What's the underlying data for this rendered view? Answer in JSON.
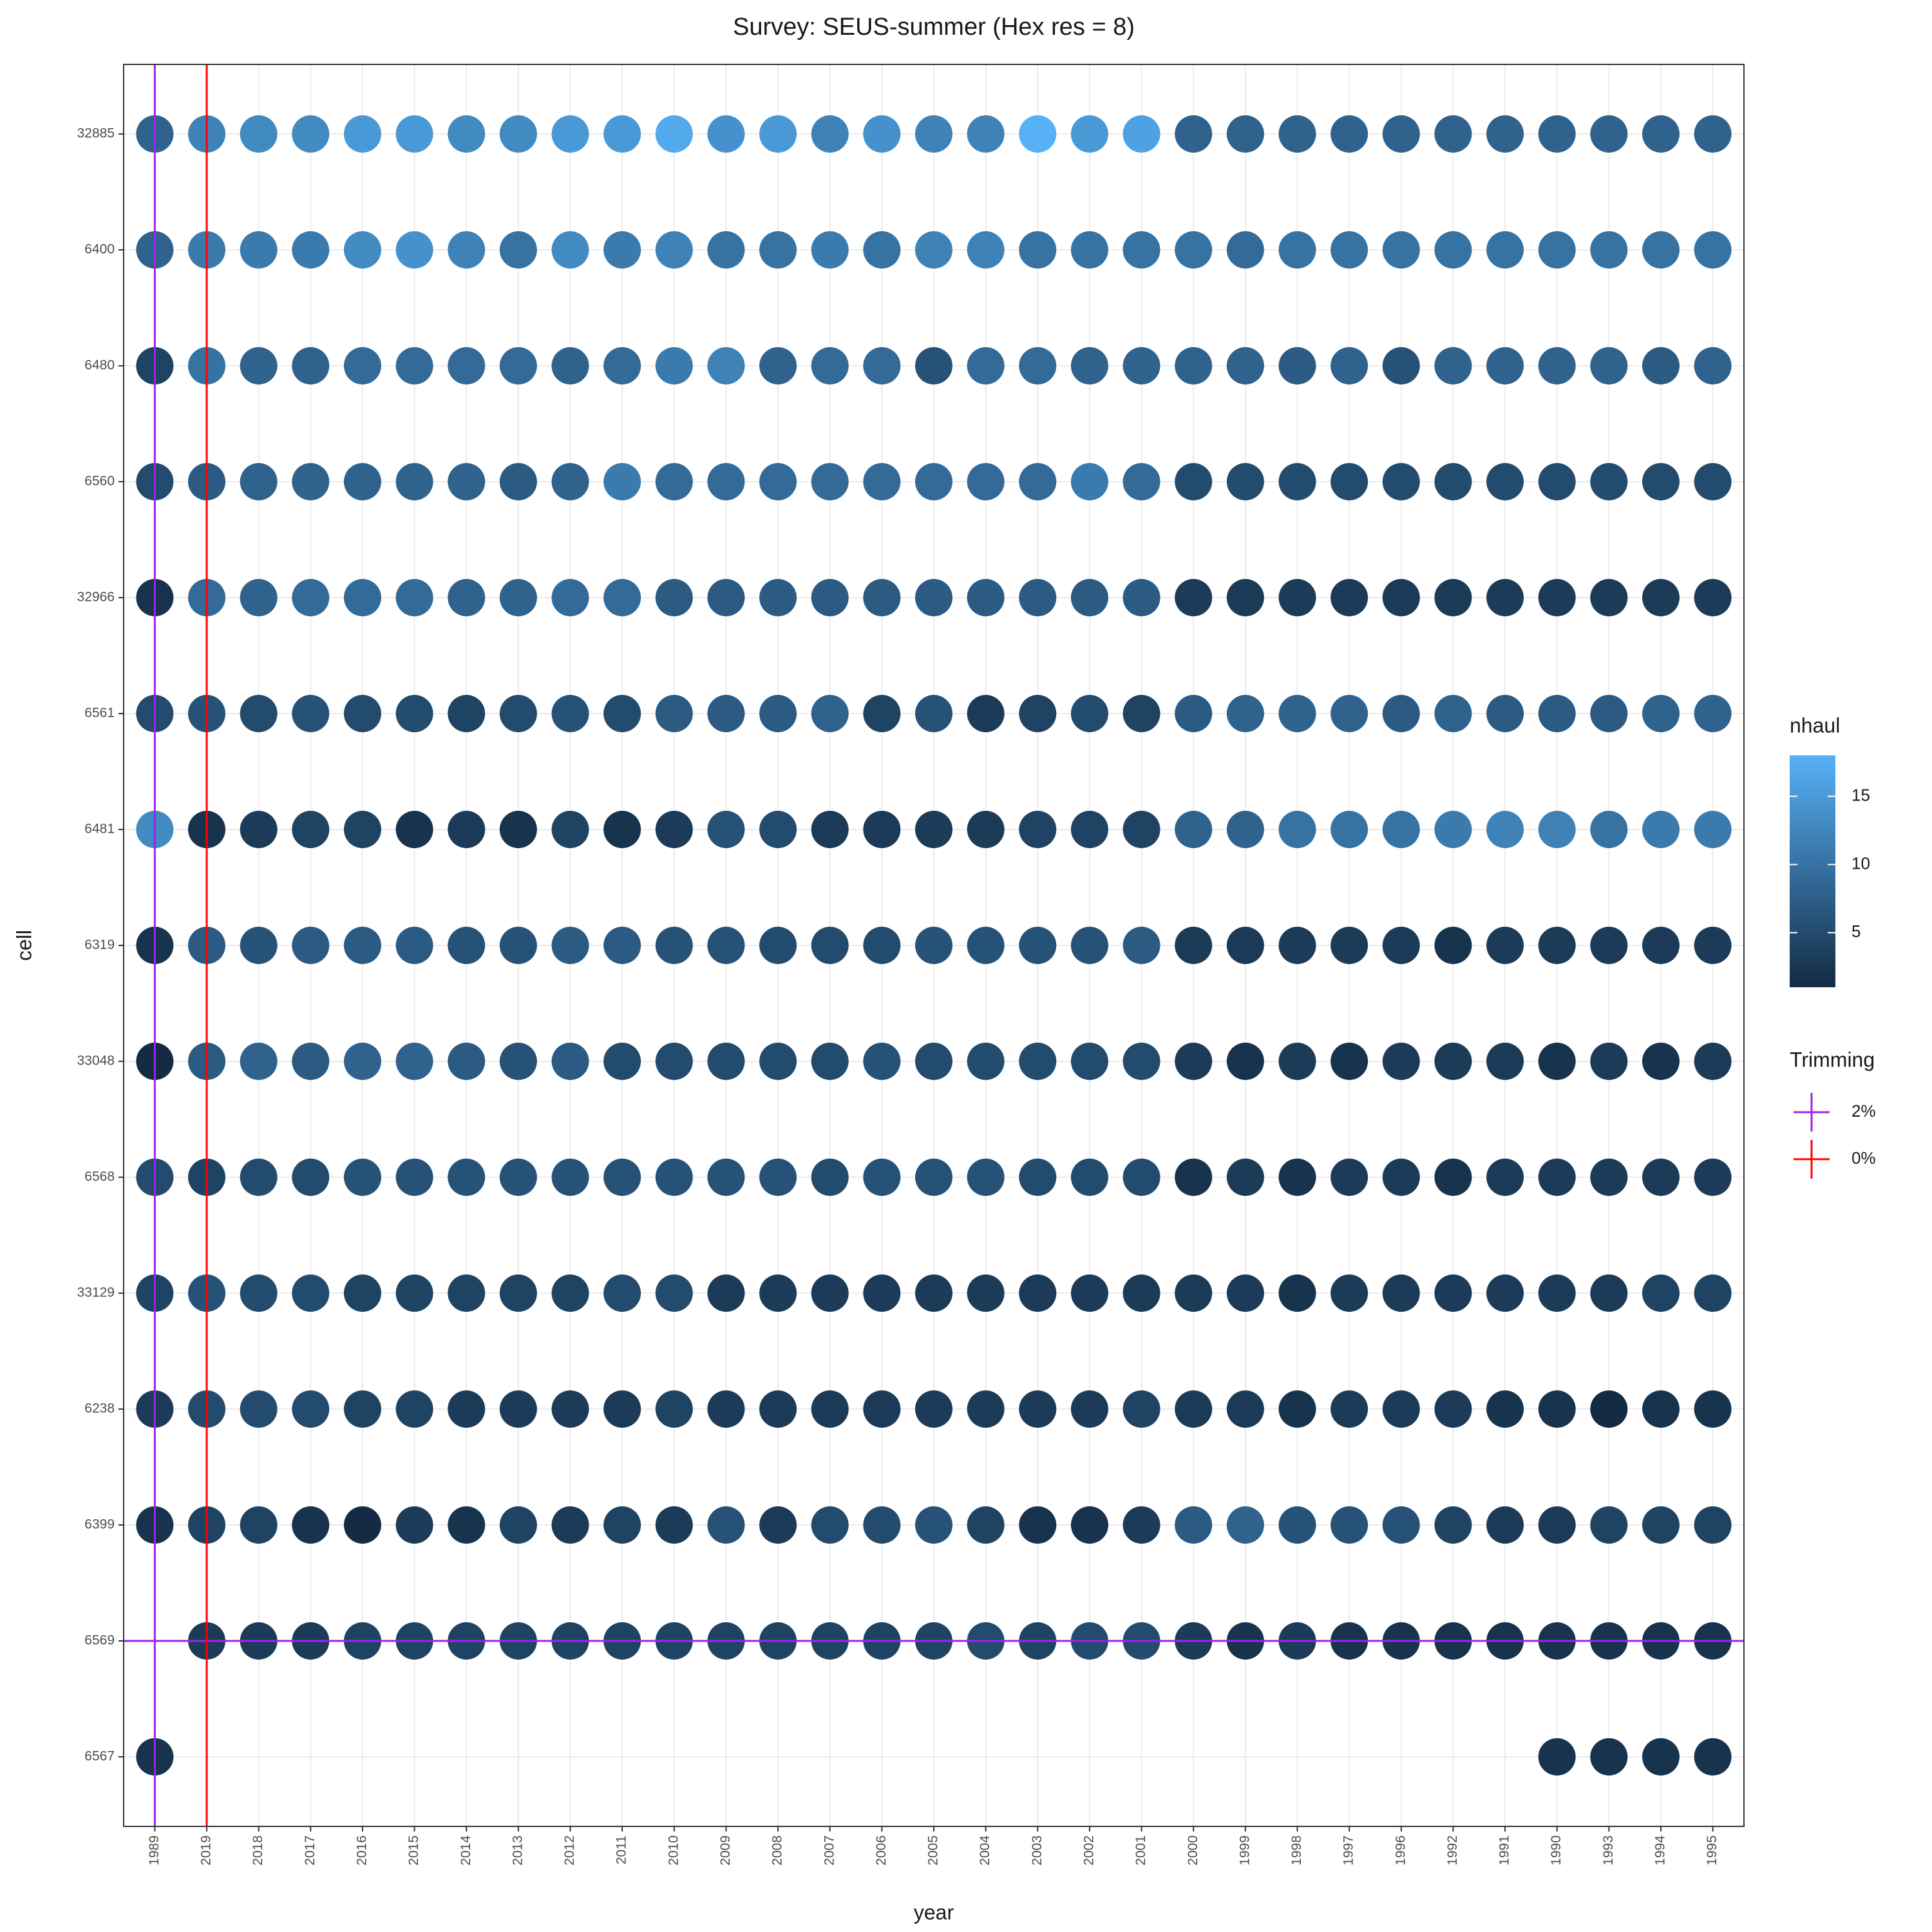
{
  "chart_data": {
    "type": "dotmatrix",
    "title": "Survey: SEUS-summer (Hex res = 8)",
    "x_label": "year",
    "y_label": "cell",
    "x": [
      "1989",
      "2019",
      "2018",
      "2017",
      "2016",
      "2015",
      "2014",
      "2013",
      "2012",
      "2011",
      "2010",
      "2009",
      "2008",
      "2007",
      "2006",
      "2005",
      "2004",
      "2003",
      "2002",
      "2001",
      "2000",
      "1999",
      "1998",
      "1997",
      "1996",
      "1992",
      "1991",
      "1990",
      "1993",
      "1994",
      "1995"
    ],
    "y": [
      "32885",
      "6400",
      "6480",
      "6560",
      "32966",
      "6561",
      "6481",
      "6319",
      "33048",
      "6568",
      "33129",
      "6238",
      "6399",
      "6569",
      "6567"
    ],
    "values": [
      [
        8,
        12,
        13,
        13,
        15,
        15,
        13,
        13,
        15,
        15,
        17,
        14,
        15,
        12,
        14,
        12,
        12,
        18,
        15,
        16,
        8,
        8,
        8,
        8,
        8,
        8,
        8,
        8,
        8,
        8,
        8
      ],
      [
        8,
        11,
        11,
        11,
        13,
        14,
        12,
        10,
        13,
        11,
        12,
        10,
        10,
        11,
        10,
        12,
        12,
        10,
        10,
        10,
        10,
        9,
        10,
        10,
        10,
        10,
        10,
        10,
        10,
        10,
        10
      ],
      [
        4,
        10,
        8,
        8,
        9,
        9,
        9,
        9,
        8,
        9,
        11,
        12,
        8,
        9,
        9,
        6,
        9,
        9,
        8,
        8,
        8,
        8,
        7,
        8,
        6,
        8,
        8,
        8,
        8,
        7,
        8
      ],
      [
        5,
        7,
        8,
        8,
        8,
        8,
        8,
        7,
        8,
        11,
        9,
        9,
        9,
        9,
        9,
        9,
        9,
        9,
        11,
        9,
        5,
        5,
        5,
        5,
        5,
        5,
        5,
        5,
        5,
        5,
        5
      ],
      [
        2,
        9,
        8,
        9,
        9,
        9,
        8,
        8,
        9,
        9,
        7,
        7,
        7,
        7,
        7,
        7,
        7,
        7,
        7,
        7,
        3,
        3,
        3,
        3,
        3,
        3,
        3,
        3,
        3,
        3,
        3
      ],
      [
        5,
        6,
        5,
        6,
        5,
        5,
        4,
        5,
        6,
        5,
        7,
        7,
        7,
        8,
        4,
        6,
        3,
        4,
        5,
        4,
        7,
        8,
        8,
        8,
        7,
        8,
        7,
        7,
        7,
        8,
        8
      ],
      [
        13,
        2,
        3,
        4,
        4,
        2,
        3,
        2,
        4,
        2,
        3,
        6,
        5,
        3,
        3,
        3,
        3,
        4,
        4,
        4,
        8,
        8,
        10,
        10,
        10,
        11,
        12,
        12,
        10,
        11,
        11
      ],
      [
        2,
        7,
        6,
        7,
        7,
        7,
        6,
        6,
        7,
        7,
        6,
        6,
        5,
        5,
        5,
        6,
        6,
        6,
        6,
        7,
        3,
        3,
        3,
        3,
        3,
        2,
        3,
        3,
        3,
        3,
        3
      ],
      [
        1,
        7,
        8,
        7,
        8,
        8,
        7,
        6,
        7,
        5,
        5,
        5,
        5,
        5,
        6,
        5,
        5,
        5,
        5,
        5,
        3,
        2,
        3,
        2,
        3,
        3,
        3,
        2,
        3,
        2,
        3
      ],
      [
        5,
        4,
        5,
        5,
        6,
        6,
        6,
        6,
        6,
        6,
        6,
        6,
        6,
        5,
        6,
        6,
        6,
        5,
        5,
        5,
        2,
        3,
        2,
        3,
        3,
        2,
        3,
        3,
        3,
        3,
        3
      ],
      [
        4,
        6,
        5,
        5,
        4,
        4,
        4,
        4,
        4,
        5,
        5,
        3,
        3,
        3,
        3,
        3,
        3,
        3,
        3,
        3,
        3,
        3,
        2,
        3,
        3,
        3,
        3,
        3,
        3,
        4,
        4
      ],
      [
        3,
        5,
        5,
        5,
        4,
        4,
        3,
        3,
        3,
        3,
        4,
        3,
        3,
        3,
        3,
        3,
        3,
        3,
        3,
        4,
        3,
        3,
        2,
        3,
        3,
        3,
        2,
        2,
        1,
        2,
        2
      ],
      [
        2,
        4,
        4,
        2,
        1,
        3,
        2,
        4,
        3,
        4,
        3,
        6,
        3,
        5,
        5,
        6,
        4,
        2,
        2,
        3,
        7,
        8,
        6,
        6,
        6,
        4,
        3,
        3,
        4,
        4,
        4
      ],
      [
        null,
        3,
        3,
        3,
        4,
        4,
        4,
        4,
        4,
        4,
        4,
        4,
        4,
        4,
        4,
        4,
        5,
        4,
        5,
        5,
        3,
        2,
        3,
        2,
        2,
        2,
        2,
        2,
        2,
        2,
        2
      ],
      [
        2,
        null,
        null,
        null,
        null,
        null,
        null,
        null,
        null,
        null,
        null,
        null,
        null,
        null,
        null,
        null,
        null,
        null,
        null,
        null,
        null,
        null,
        null,
        null,
        null,
        null,
        null,
        2,
        2,
        2,
        2
      ]
    ],
    "colorbar": {
      "title": "nhaul",
      "lim": [
        1,
        18
      ],
      "ticks": [
        5,
        10,
        15
      ],
      "low": "#132B43",
      "high": "#56B1F7"
    },
    "trimming": {
      "title": "Trimming",
      "entries": [
        {
          "label": "2%",
          "color": "#a020f0",
          "x": "1989",
          "y": "6569"
        },
        {
          "label": "0%",
          "color": "#ff0000",
          "x": "2019"
        }
      ]
    },
    "grid": true
  }
}
